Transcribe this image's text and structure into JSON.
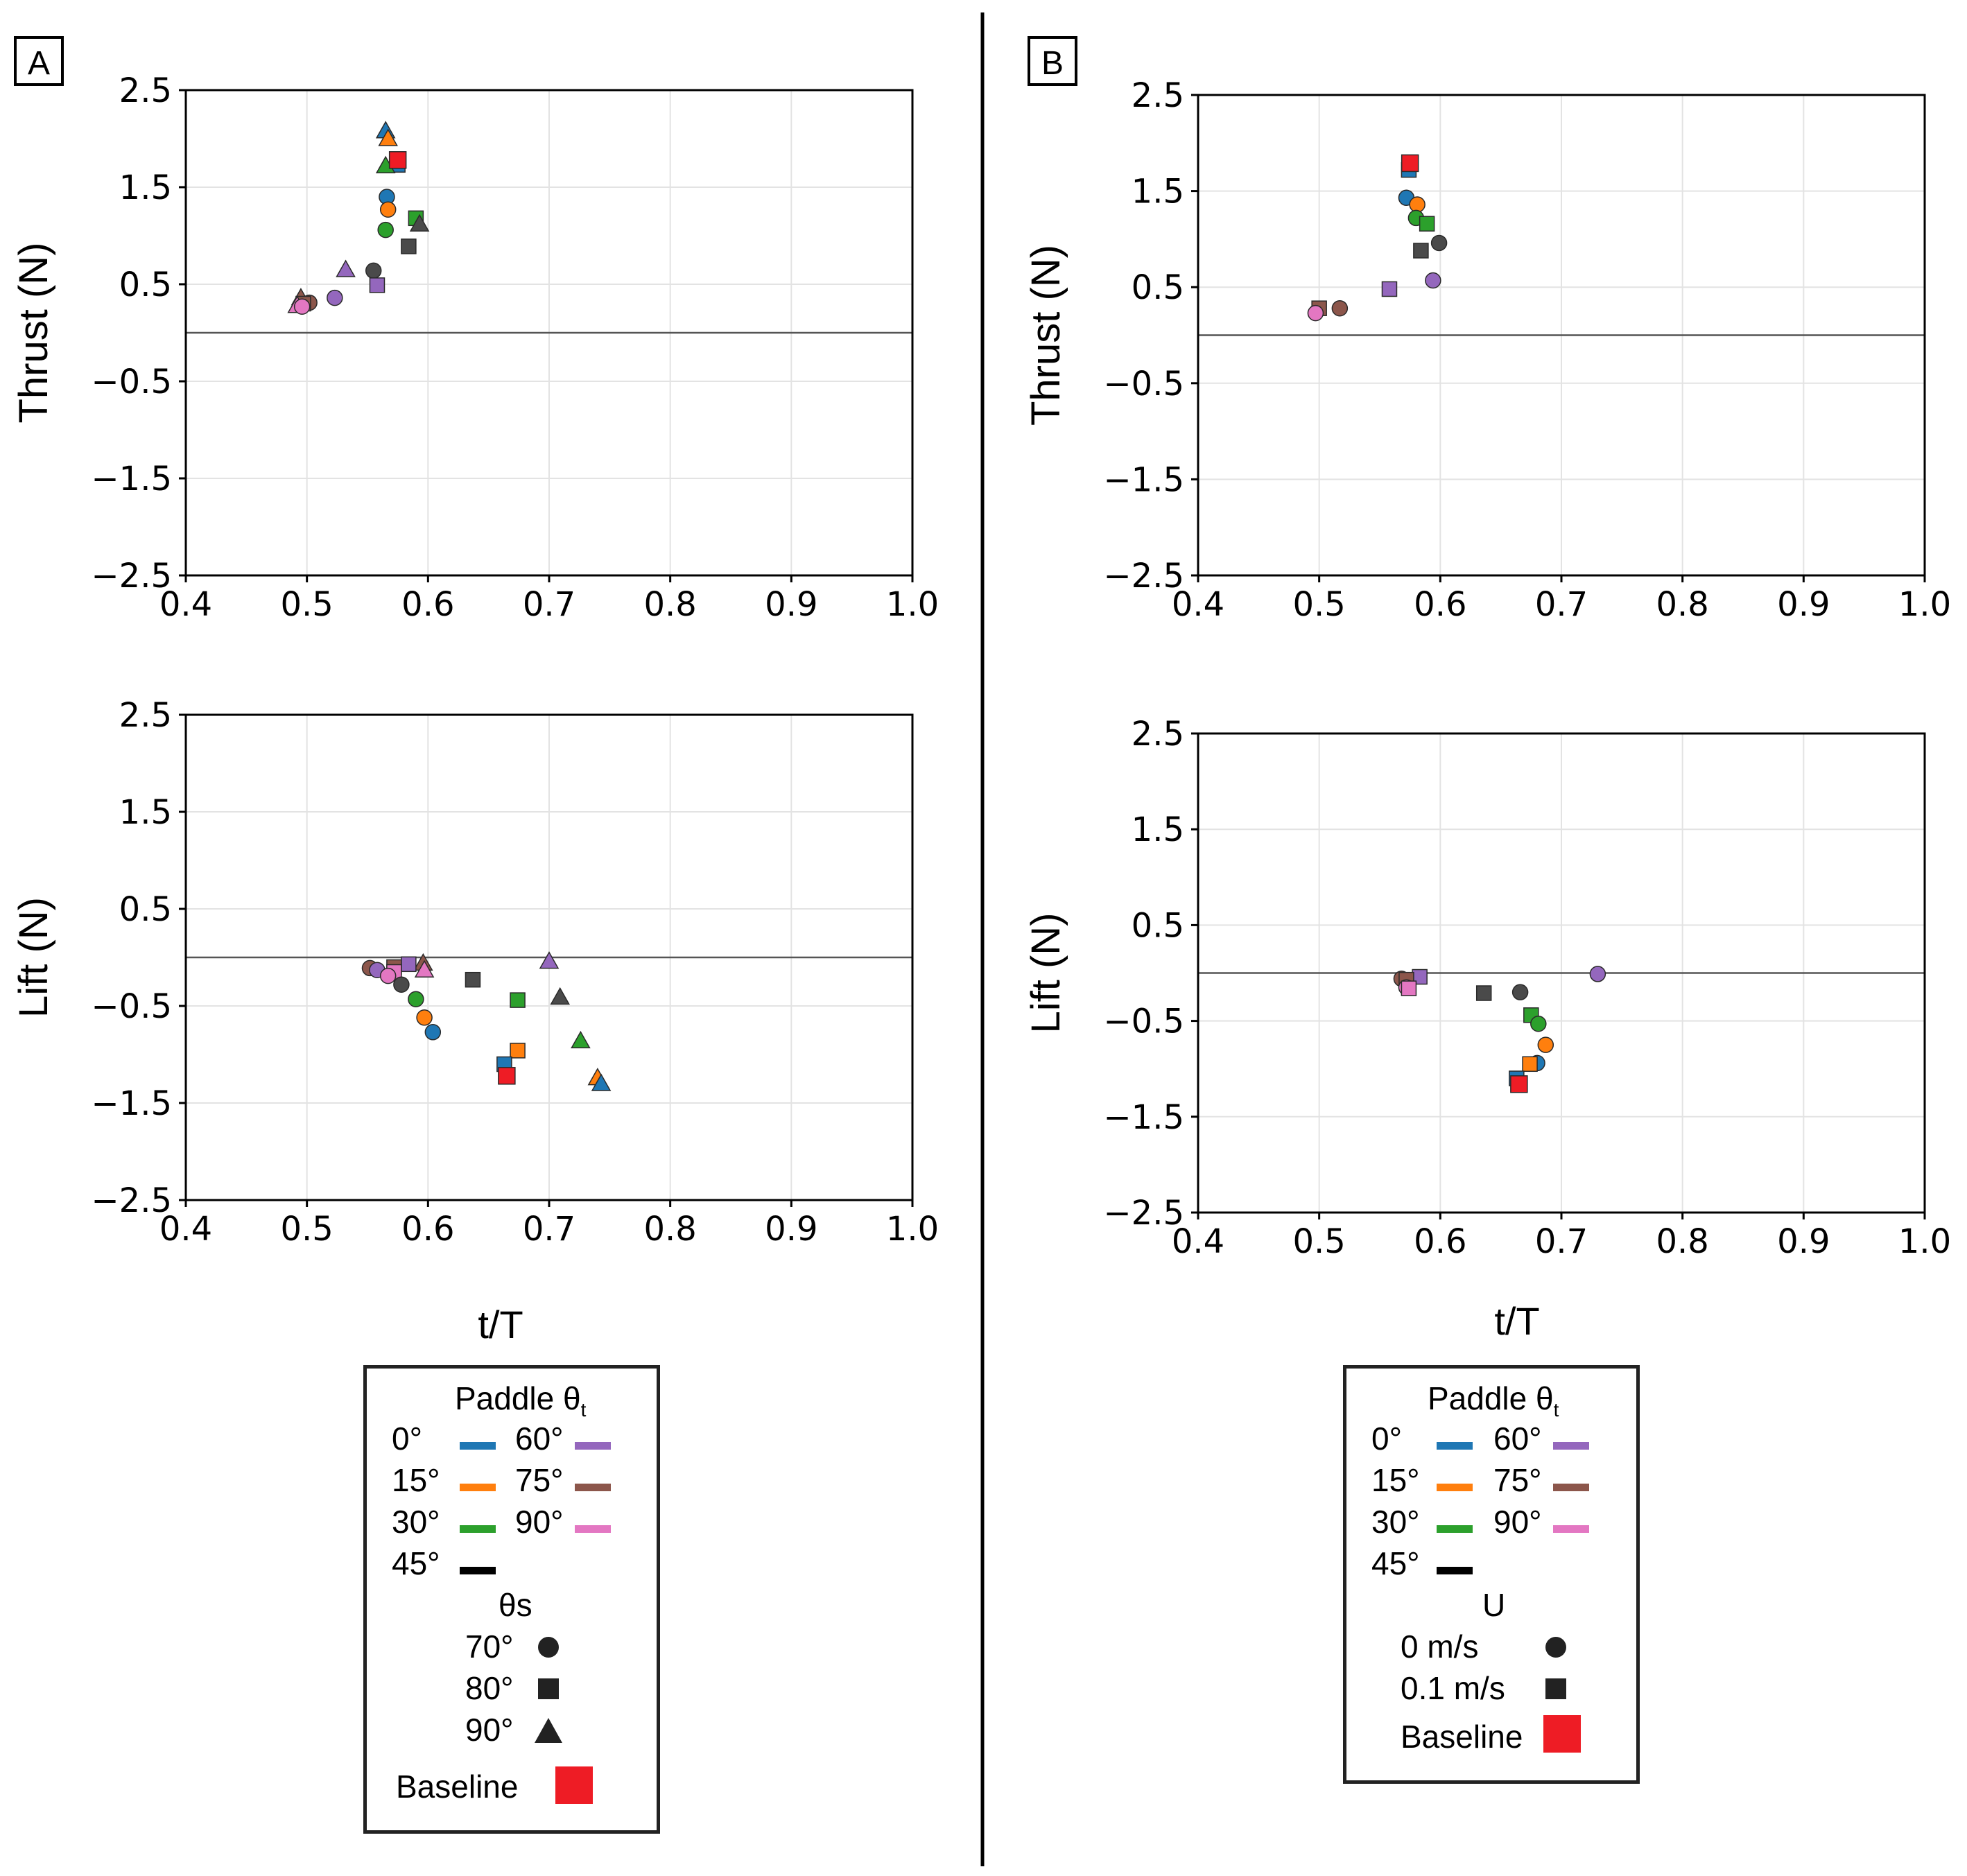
{
  "panels": [
    {
      "label": "A",
      "xlabel": "t/T"
    },
    {
      "label": "B",
      "xlabel": "t/T"
    }
  ],
  "legends": [
    {
      "paddle_title": "Paddle θ",
      "paddle_sub": "t",
      "paddle_entries": [
        {
          "label": "0°",
          "color": "#1f77b4"
        },
        {
          "label": "15°",
          "color": "#ff7f0e"
        },
        {
          "label": "30°",
          "color": "#2ca02c"
        },
        {
          "label": "45°",
          "color": "#000000"
        },
        {
          "label": "60°",
          "color": "#9467bd"
        },
        {
          "label": "75°",
          "color": "#8c564b"
        },
        {
          "label": "90°",
          "color": "#e377c2"
        }
      ],
      "shape_title": "θs",
      "shape_entries": [
        {
          "label": "70°",
          "marker": "circle"
        },
        {
          "label": "80°",
          "marker": "square"
        },
        {
          "label": "90°",
          "marker": "triangle"
        }
      ],
      "baseline_label": "Baseline"
    },
    {
      "paddle_title": "Paddle θ",
      "paddle_sub": "t",
      "paddle_entries": [
        {
          "label": "0°",
          "color": "#1f77b4"
        },
        {
          "label": "15°",
          "color": "#ff7f0e"
        },
        {
          "label": "30°",
          "color": "#2ca02c"
        },
        {
          "label": "45°",
          "color": "#000000"
        },
        {
          "label": "60°",
          "color": "#9467bd"
        },
        {
          "label": "75°",
          "color": "#8c564b"
        },
        {
          "label": "90°",
          "color": "#e377c2"
        }
      ],
      "shape_title": "U",
      "shape_entries": [
        {
          "label": "0 m/s",
          "marker": "circle"
        },
        {
          "label": "0.1 m/s",
          "marker": "square"
        }
      ],
      "baseline_label": "Baseline"
    }
  ],
  "colors": {
    "0": "#1f77b4",
    "15": "#ff7f0e",
    "30": "#2ca02c",
    "45": "#4a4a4a",
    "60": "#9467bd",
    "75": "#8c564b",
    "90": "#e377c2",
    "baseline": "#ee1c25"
  },
  "chart_data": [
    {
      "type": "scatter",
      "panel": "A",
      "ylabel": "Thrust (N)",
      "xlim": [
        0.4,
        1.0
      ],
      "ylim": [
        -2.5,
        2.5
      ],
      "xticks": [
        "0.4",
        "0.5",
        "0.6",
        "0.7",
        "0.8",
        "0.9",
        "1.0"
      ],
      "yticks": [
        "2.5",
        "1.5",
        "0.5",
        "−0.5",
        "−1.5",
        "−2.5"
      ],
      "grid": true,
      "zero_line": true,
      "points": [
        {
          "x": 0.565,
          "y": 2.08,
          "c": "0",
          "m": "triangle"
        },
        {
          "x": 0.567,
          "y": 2.0,
          "c": "15",
          "m": "triangle"
        },
        {
          "x": 0.575,
          "y": 1.73,
          "c": "0",
          "m": "square"
        },
        {
          "x": 0.565,
          "y": 1.72,
          "c": "30",
          "m": "triangle"
        },
        {
          "x": 0.575,
          "y": 1.78,
          "c": "baseline",
          "m": "square"
        },
        {
          "x": 0.566,
          "y": 1.4,
          "c": "0",
          "m": "circle"
        },
        {
          "x": 0.567,
          "y": 1.27,
          "c": "15",
          "m": "circle"
        },
        {
          "x": 0.59,
          "y": 1.18,
          "c": "30",
          "m": "square"
        },
        {
          "x": 0.593,
          "y": 1.12,
          "c": "45",
          "m": "triangle"
        },
        {
          "x": 0.565,
          "y": 1.06,
          "c": "30",
          "m": "circle"
        },
        {
          "x": 0.584,
          "y": 0.89,
          "c": "45",
          "m": "square"
        },
        {
          "x": 0.532,
          "y": 0.65,
          "c": "60",
          "m": "triangle"
        },
        {
          "x": 0.555,
          "y": 0.64,
          "c": "45",
          "m": "circle"
        },
        {
          "x": 0.558,
          "y": 0.49,
          "c": "60",
          "m": "square"
        },
        {
          "x": 0.523,
          "y": 0.36,
          "c": "60",
          "m": "circle"
        },
        {
          "x": 0.495,
          "y": 0.36,
          "c": "75",
          "m": "triangle"
        },
        {
          "x": 0.502,
          "y": 0.31,
          "c": "75",
          "m": "circle"
        },
        {
          "x": 0.497,
          "y": 0.3,
          "c": "75",
          "m": "square"
        },
        {
          "x": 0.492,
          "y": 0.28,
          "c": "90",
          "m": "triangle"
        },
        {
          "x": 0.496,
          "y": 0.27,
          "c": "90",
          "m": "circle"
        }
      ]
    },
    {
      "type": "scatter",
      "panel": "A",
      "ylabel": "Lift (N)",
      "xlim": [
        0.4,
        1.0
      ],
      "ylim": [
        -2.5,
        2.5
      ],
      "xticks": [
        "0.4",
        "0.5",
        "0.6",
        "0.7",
        "0.8",
        "0.9",
        "1.0"
      ],
      "yticks": [
        "2.5",
        "1.5",
        "0.5",
        "−0.5",
        "−1.5",
        "−2.5"
      ],
      "grid": true,
      "zero_line": true,
      "points": [
        {
          "x": 0.7,
          "y": -0.04,
          "c": "60",
          "m": "triangle"
        },
        {
          "x": 0.596,
          "y": -0.06,
          "c": "75",
          "m": "triangle"
        },
        {
          "x": 0.584,
          "y": -0.07,
          "c": "60",
          "m": "square"
        },
        {
          "x": 0.597,
          "y": -0.13,
          "c": "90",
          "m": "triangle"
        },
        {
          "x": 0.572,
          "y": -0.1,
          "c": "75",
          "m": "square"
        },
        {
          "x": 0.552,
          "y": -0.11,
          "c": "75",
          "m": "circle"
        },
        {
          "x": 0.558,
          "y": -0.13,
          "c": "60",
          "m": "circle"
        },
        {
          "x": 0.572,
          "y": -0.15,
          "c": "90",
          "m": "square"
        },
        {
          "x": 0.567,
          "y": -0.19,
          "c": "90",
          "m": "circle"
        },
        {
          "x": 0.637,
          "y": -0.23,
          "c": "45",
          "m": "square"
        },
        {
          "x": 0.578,
          "y": -0.28,
          "c": "45",
          "m": "circle"
        },
        {
          "x": 0.709,
          "y": -0.41,
          "c": "45",
          "m": "triangle"
        },
        {
          "x": 0.674,
          "y": -0.44,
          "c": "30",
          "m": "square"
        },
        {
          "x": 0.59,
          "y": -0.43,
          "c": "30",
          "m": "circle"
        },
        {
          "x": 0.597,
          "y": -0.62,
          "c": "15",
          "m": "circle"
        },
        {
          "x": 0.604,
          "y": -0.77,
          "c": "0",
          "m": "circle"
        },
        {
          "x": 0.726,
          "y": -0.86,
          "c": "30",
          "m": "triangle"
        },
        {
          "x": 0.674,
          "y": -0.96,
          "c": "15",
          "m": "square"
        },
        {
          "x": 0.663,
          "y": -1.1,
          "c": "0",
          "m": "square"
        },
        {
          "x": 0.665,
          "y": -1.22,
          "c": "baseline",
          "m": "square"
        },
        {
          "x": 0.74,
          "y": -1.24,
          "c": "15",
          "m": "triangle"
        },
        {
          "x": 0.743,
          "y": -1.3,
          "c": "0",
          "m": "triangle"
        }
      ]
    },
    {
      "type": "scatter",
      "panel": "B",
      "ylabel": "Thrust (N)",
      "xlim": [
        0.4,
        1.0
      ],
      "ylim": [
        -2.5,
        2.5
      ],
      "xticks": [
        "0.4",
        "0.5",
        "0.6",
        "0.7",
        "0.8",
        "0.9",
        "1.0"
      ],
      "yticks": [
        "2.5",
        "1.5",
        "0.5",
        "−0.5",
        "−1.5",
        "−2.5"
      ],
      "grid": true,
      "zero_line": true,
      "points": [
        {
          "x": 0.574,
          "y": 1.72,
          "c": "0",
          "m": "square"
        },
        {
          "x": 0.575,
          "y": 1.79,
          "c": "baseline",
          "m": "square"
        },
        {
          "x": 0.572,
          "y": 1.43,
          "c": "0",
          "m": "circle"
        },
        {
          "x": 0.581,
          "y": 1.36,
          "c": "15",
          "m": "circle"
        },
        {
          "x": 0.58,
          "y": 1.22,
          "c": "30",
          "m": "circle"
        },
        {
          "x": 0.589,
          "y": 1.16,
          "c": "30",
          "m": "square"
        },
        {
          "x": 0.599,
          "y": 0.96,
          "c": "45",
          "m": "circle"
        },
        {
          "x": 0.584,
          "y": 0.88,
          "c": "45",
          "m": "square"
        },
        {
          "x": 0.594,
          "y": 0.57,
          "c": "60",
          "m": "circle"
        },
        {
          "x": 0.558,
          "y": 0.48,
          "c": "60",
          "m": "square"
        },
        {
          "x": 0.517,
          "y": 0.28,
          "c": "75",
          "m": "circle"
        },
        {
          "x": 0.5,
          "y": 0.28,
          "c": "75",
          "m": "square"
        },
        {
          "x": 0.497,
          "y": 0.23,
          "c": "90",
          "m": "circle"
        }
      ]
    },
    {
      "type": "scatter",
      "panel": "B",
      "ylabel": "Lift (N)",
      "xlim": [
        0.4,
        1.0
      ],
      "ylim": [
        -2.5,
        2.5
      ],
      "xticks": [
        "0.4",
        "0.5",
        "0.6",
        "0.7",
        "0.8",
        "0.9",
        "1.0"
      ],
      "yticks": [
        "2.5",
        "1.5",
        "0.5",
        "−0.5",
        "−1.5",
        "−2.5"
      ],
      "grid": true,
      "zero_line": true,
      "points": [
        {
          "x": 0.73,
          "y": -0.01,
          "c": "60",
          "m": "circle"
        },
        {
          "x": 0.583,
          "y": -0.04,
          "c": "60",
          "m": "square"
        },
        {
          "x": 0.568,
          "y": -0.06,
          "c": "75",
          "m": "circle"
        },
        {
          "x": 0.572,
          "y": -0.07,
          "c": "75",
          "m": "square"
        },
        {
          "x": 0.572,
          "y": -0.15,
          "c": "90",
          "m": "circle"
        },
        {
          "x": 0.574,
          "y": -0.16,
          "c": "90",
          "m": "square"
        },
        {
          "x": 0.666,
          "y": -0.2,
          "c": "45",
          "m": "circle"
        },
        {
          "x": 0.636,
          "y": -0.21,
          "c": "45",
          "m": "square"
        },
        {
          "x": 0.675,
          "y": -0.44,
          "c": "30",
          "m": "square"
        },
        {
          "x": 0.681,
          "y": -0.53,
          "c": "30",
          "m": "circle"
        },
        {
          "x": 0.687,
          "y": -0.75,
          "c": "15",
          "m": "circle"
        },
        {
          "x": 0.68,
          "y": -0.94,
          "c": "0",
          "m": "circle"
        },
        {
          "x": 0.674,
          "y": -0.95,
          "c": "15",
          "m": "square"
        },
        {
          "x": 0.663,
          "y": -1.1,
          "c": "0",
          "m": "square"
        },
        {
          "x": 0.665,
          "y": -1.16,
          "c": "baseline",
          "m": "square"
        }
      ]
    }
  ]
}
